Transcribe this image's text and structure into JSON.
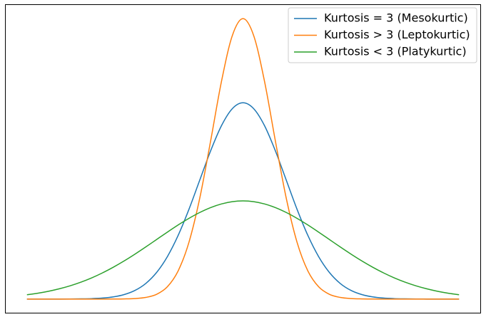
{
  "chart_data": {
    "type": "line",
    "x": [
      -5,
      -4.75,
      -4.5,
      -4.25,
      -4,
      -3.75,
      -3.5,
      -3.25,
      -3,
      -2.75,
      -2.5,
      -2.25,
      -2,
      -1.75,
      -1.5,
      -1.25,
      -1,
      -0.75,
      -0.5,
      -0.25,
      0,
      0.25,
      0.5,
      0.75,
      1,
      1.25,
      1.5,
      1.75,
      2,
      2.25,
      2.5,
      2.75,
      3,
      3.25,
      3.5,
      3.75,
      4,
      4.25,
      4.5,
      4.75,
      5
    ],
    "series": [
      {
        "name": "Kurtosis = 3 (Mesokurtic)",
        "color": "#1f77b4",
        "values": [
          0,
          0,
          0,
          0,
          0.0001,
          0.0004,
          0.0009,
          0.002,
          0.0044,
          0.0091,
          0.0175,
          0.0317,
          0.054,
          0.0863,
          0.1295,
          0.1826,
          0.242,
          0.3011,
          0.3521,
          0.3867,
          0.3989,
          0.3867,
          0.3521,
          0.3011,
          0.242,
          0.1826,
          0.1295,
          0.0863,
          0.054,
          0.0317,
          0.0175,
          0.0091,
          0.0044,
          0.002,
          0.0009,
          0.0004,
          0.0001,
          0,
          0,
          0,
          0
        ]
      },
      {
        "name": "Kurtosis > 3 (Leptokurtic)",
        "color": "#ff7f0e",
        "values": [
          0,
          0,
          0,
          0,
          0,
          0,
          0,
          0,
          0.0001,
          0.0003,
          0.001,
          0.0033,
          0.0096,
          0.025,
          0.0574,
          0.1157,
          0.2054,
          0.321,
          0.4416,
          0.5347,
          0.5699,
          0.5347,
          0.4416,
          0.321,
          0.2054,
          0.1157,
          0.0574,
          0.025,
          0.0096,
          0.0033,
          0.001,
          0.0003,
          0.0001,
          0,
          0,
          0,
          0,
          0,
          0,
          0,
          0
        ]
      },
      {
        "name": "Kurtosis < 3 (Platykurtic)",
        "color": "#2ca02c",
        "values": [
          0.0088,
          0.0119,
          0.0159,
          0.0209,
          0.027,
          0.0344,
          0.0431,
          0.0533,
          0.0648,
          0.0775,
          0.0913,
          0.1059,
          0.121,
          0.136,
          0.1506,
          0.1641,
          0.176,
          0.1859,
          0.1933,
          0.1979,
          0.1995,
          0.1979,
          0.1933,
          0.1859,
          0.176,
          0.1641,
          0.1506,
          0.136,
          0.121,
          0.1059,
          0.0913,
          0.0775,
          0.0648,
          0.0533,
          0.0431,
          0.0344,
          0.027,
          0.0209,
          0.0159,
          0.0119,
          0.0088
        ]
      }
    ],
    "xlim": [
      -5.5,
      5.5
    ],
    "ylim": [
      -0.0285,
      0.5984
    ],
    "grid": false,
    "legend": "upper right"
  }
}
